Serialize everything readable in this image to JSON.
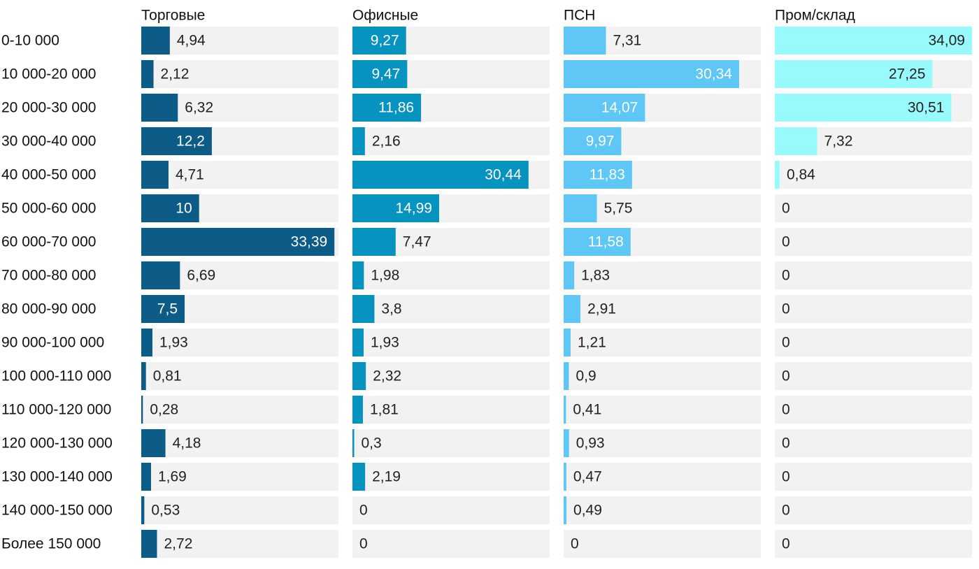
{
  "chart_data": {
    "type": "bar",
    "orientation": "horizontal",
    "layout": "small-multiples",
    "categories": [
      "0-10 000",
      "10 000-20 000",
      "20 000-30 000",
      "30 000-40 000",
      "40 000-50 000",
      "50 000-60 000",
      "60 000-70 000",
      "70 000-80 000",
      "80 000-90 000",
      "90 000-100 000",
      "100 000-110 000",
      "110 000-120 000",
      "120 000-130 000",
      "130 000-140 000",
      "140 000-150 000",
      "Более 150 000"
    ],
    "value_labels": {
      "s0": [
        "4,94",
        "2,12",
        "6,32",
        "12,2",
        "4,71",
        "10",
        "33,39",
        "6,69",
        "7,5",
        "1,93",
        "0,81",
        "0,28",
        "4,18",
        "1,69",
        "0,53",
        "2,72"
      ],
      "s1": [
        "9,27",
        "9,47",
        "11,86",
        "2,16",
        "30,44",
        "14,99",
        "7,47",
        "1,98",
        "3,8",
        "1,93",
        "2,32",
        "1,81",
        "0,3",
        "2,19",
        "0",
        "0"
      ],
      "s2": [
        "7,31",
        "30,34",
        "14,07",
        "9,97",
        "11,83",
        "5,75",
        "11,58",
        "1,83",
        "2,91",
        "1,21",
        "0,9",
        "0,41",
        "0,93",
        "0,47",
        "0,49",
        "0"
      ],
      "s3": [
        "34,09",
        "27,25",
        "30,51",
        "7,32",
        "0,84",
        "0",
        "0",
        "0",
        "0",
        "0",
        "0",
        "0",
        "0",
        "0",
        "0",
        "0"
      ]
    },
    "series": [
      {
        "name": "Торговые",
        "color": "#0d5b87",
        "label_key": "s0",
        "values": [
          4.94,
          2.12,
          6.32,
          12.2,
          4.71,
          10,
          33.39,
          6.69,
          7.5,
          1.93,
          0.81,
          0.28,
          4.18,
          1.69,
          0.53,
          2.72
        ]
      },
      {
        "name": "Офисные",
        "color": "#0693bf",
        "label_key": "s1",
        "values": [
          9.27,
          9.47,
          11.86,
          2.16,
          30.44,
          14.99,
          7.47,
          1.98,
          3.8,
          1.93,
          2.32,
          1.81,
          0.3,
          2.19,
          0,
          0
        ]
      },
      {
        "name": "ПСН",
        "color": "#5ec7f5",
        "label_key": "s2",
        "values": [
          7.31,
          30.34,
          14.07,
          9.97,
          11.83,
          5.75,
          11.58,
          1.83,
          2.91,
          1.21,
          0.9,
          0.41,
          0.93,
          0.47,
          0.49,
          0
        ]
      },
      {
        "name": "Пром/склад",
        "color": "#99fafe",
        "label_key": "s3",
        "values": [
          34.09,
          27.25,
          30.51,
          7.32,
          0.84,
          0,
          0,
          0,
          0,
          0,
          0,
          0,
          0,
          0,
          0,
          0
        ]
      }
    ],
    "track_color": "#f2f2f2",
    "grid": false,
    "legend": "none"
  }
}
